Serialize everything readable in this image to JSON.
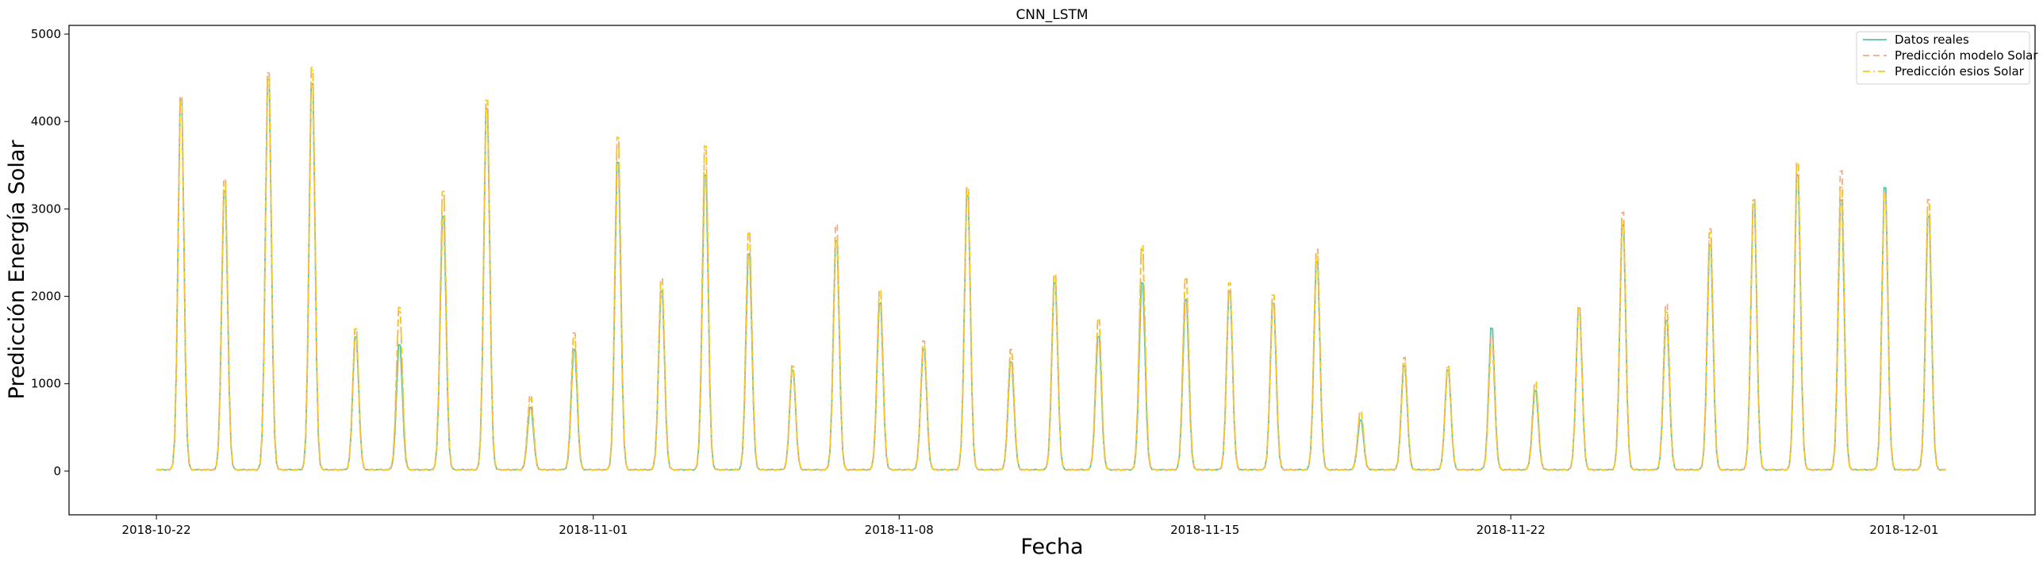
{
  "chart_data": {
    "type": "line",
    "title": "CNN_LSTM",
    "xlabel": "Fecha",
    "ylabel": "Predicción Energía Solar",
    "ylim": [
      -500,
      5100
    ],
    "xlim": [
      "2018-10-20T00:00",
      "2018-12-04T00:00"
    ],
    "yticks": [
      0,
      1000,
      2000,
      3000,
      4000,
      5000
    ],
    "xticks": [
      "2018-10-22",
      "2018-11-01",
      "2018-11-08",
      "2018-11-15",
      "2018-11-22",
      "2018-12-01"
    ],
    "grid": false,
    "legend_position": "upper-right",
    "series": [
      {
        "name": "Datos reales",
        "color": "#5ec4a0",
        "style": "solid",
        "peaks": [
          4450,
          3350,
          4700,
          4650,
          1600,
          1500,
          3050,
          4350,
          750,
          1450,
          3700,
          2150,
          3550,
          2600,
          1200,
          2750,
          2000,
          1450,
          3300,
          1300,
          2250,
          1600,
          2250,
          2050,
          2150,
          2000,
          2500,
          600,
          1250,
          1200,
          1700,
          950,
          1950,
          2950,
          1800,
          2700,
          3200,
          3550,
          3250,
          3400,
          3050
        ]
      },
      {
        "name": "Predicción modelo Solar",
        "color": "#f5a97f",
        "style": "dashed",
        "peaks": [
          4500,
          3500,
          4780,
          4800,
          1700,
          1900,
          3300,
          4450,
          900,
          1650,
          3950,
          2300,
          3850,
          2850,
          1250,
          2950,
          2150,
          1550,
          3400,
          1450,
          2350,
          1800,
          2650,
          2300,
          2250,
          2100,
          2650,
          700,
          1350,
          1250,
          1600,
          1050,
          1950,
          3100,
          2000,
          2900,
          3250,
          3700,
          3600,
          3350,
          3250
        ]
      },
      {
        "name": "Predicción esios Solar",
        "color": "#f5cc1a",
        "style": "dashdot",
        "peaks": [
          4450,
          3450,
          4750,
          4850,
          1700,
          1950,
          3350,
          4450,
          850,
          1600,
          4000,
          2250,
          3900,
          2850,
          1250,
          2800,
          2150,
          1500,
          3400,
          1400,
          2350,
          1800,
          2700,
          2300,
          2250,
          2100,
          2600,
          700,
          1300,
          1250,
          1500,
          1050,
          1950,
          3000,
          1900,
          2850,
          3250,
          3700,
          3400,
          3300,
          3200
        ]
      }
    ]
  }
}
